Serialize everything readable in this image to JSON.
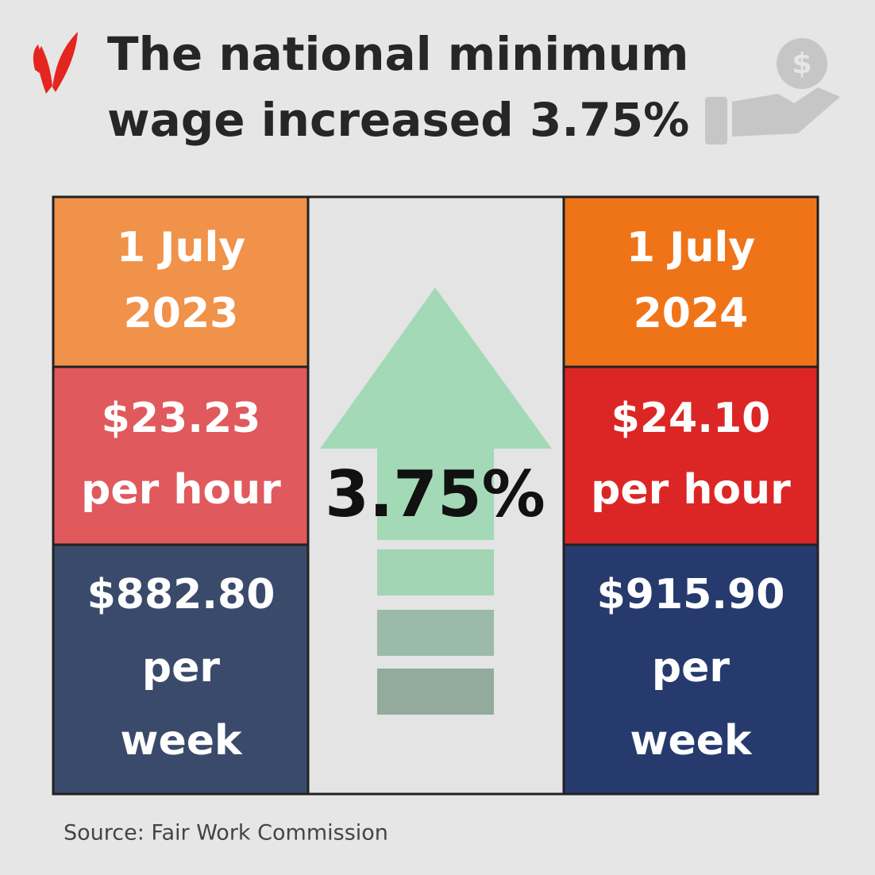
{
  "header": {
    "title_lines": [
      "The national minimum",
      "wage increased 3.75%"
    ]
  },
  "columns": [
    {
      "date_lines": [
        "1 July",
        "2023"
      ],
      "hourly_lines": [
        "$23.23",
        "per hour"
      ],
      "weekly_lines": [
        "$882.80",
        "per",
        "week"
      ]
    },
    {
      "date_lines": [
        "1 July",
        "2024"
      ],
      "hourly_lines": [
        "$24.10",
        "per hour"
      ],
      "weekly_lines": [
        "$915.90",
        "per",
        "week"
      ]
    }
  ],
  "increase": "3.75%",
  "source": "Source: Fair Work Commission"
}
